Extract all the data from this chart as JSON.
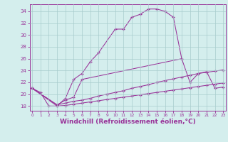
{
  "background_color": "#d4eeed",
  "grid_color": "#a8cccc",
  "line_color": "#993399",
  "xlabel": "Windchill (Refroidissement éolien,°C)",
  "xlabel_fontsize": 6.5,
  "ytick_labels": [
    "18",
    "20",
    "22",
    "24",
    "26",
    "28",
    "30",
    "32",
    "34"
  ],
  "ytick_vals": [
    18,
    20,
    22,
    24,
    26,
    28,
    30,
    32,
    34
  ],
  "xtick_vals": [
    0,
    1,
    2,
    3,
    4,
    5,
    6,
    7,
    8,
    9,
    10,
    11,
    12,
    13,
    14,
    15,
    16,
    17,
    18,
    19,
    20,
    21,
    22,
    23
  ],
  "xlim": [
    -0.3,
    23.3
  ],
  "ylim": [
    17.2,
    35.2
  ],
  "line1_x": [
    0,
    1,
    2,
    3,
    4,
    5,
    6,
    7,
    8,
    10,
    11,
    12,
    13,
    14,
    15,
    16,
    17,
    18
  ],
  "line1_y": [
    21.0,
    20.3,
    18.0,
    18.0,
    19.3,
    22.5,
    23.5,
    25.5,
    27.0,
    31.0,
    31.0,
    33.0,
    33.5,
    34.4,
    34.4,
    34.0,
    33.0,
    26.0
  ],
  "line2_x": [
    0,
    3,
    4,
    5,
    6,
    18,
    19,
    20,
    21,
    22,
    23
  ],
  "line2_y": [
    21.0,
    18.2,
    19.0,
    19.5,
    22.5,
    26.0,
    22.0,
    23.5,
    23.8,
    21.0,
    21.2
  ],
  "line3_x": [
    0,
    3,
    4,
    5,
    6,
    7,
    8,
    9,
    10,
    11,
    12,
    13,
    14,
    15,
    16,
    17,
    18,
    19,
    20,
    21,
    22,
    23
  ],
  "line3_y": [
    21.0,
    18.2,
    18.5,
    18.8,
    19.0,
    19.3,
    19.7,
    20.0,
    20.3,
    20.6,
    21.0,
    21.3,
    21.6,
    22.0,
    22.3,
    22.6,
    22.9,
    23.2,
    23.5,
    23.7,
    23.9,
    24.1
  ],
  "line4_x": [
    0,
    3,
    4,
    5,
    6,
    7,
    8,
    9,
    10,
    11,
    12,
    13,
    14,
    15,
    16,
    17,
    18,
    19,
    20,
    21,
    22,
    23
  ],
  "line4_y": [
    21.0,
    18.0,
    18.1,
    18.3,
    18.5,
    18.7,
    18.9,
    19.1,
    19.3,
    19.5,
    19.7,
    19.9,
    20.1,
    20.3,
    20.5,
    20.7,
    20.9,
    21.1,
    21.3,
    21.5,
    21.7,
    21.9
  ]
}
